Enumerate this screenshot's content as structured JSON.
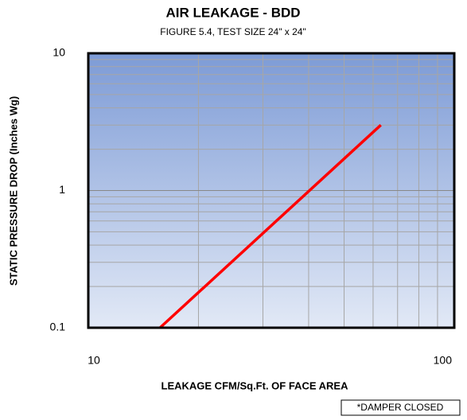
{
  "chart_data": {
    "type": "line",
    "title": "AIR LEAKAGE - BDD",
    "subtitle": "FIGURE 5.4, TEST SIZE 24\" x 24\"",
    "x_label": "LEAKAGE CFM/Sq.Ft. OF FACE AREA",
    "y_label": "STATIC PRESSURE DROP (Inches Wg)",
    "annotation": "*DAMPER CLOSED",
    "series": [
      {
        "name": "BDD",
        "color": "#ff0000",
        "x": [
          15.7,
          63
        ],
        "values": [
          0.1,
          3
        ]
      }
    ],
    "xlim": [
      10,
      100
    ],
    "xticks": [
      10,
      100
    ],
    "ylim": [
      0.1,
      10
    ],
    "yticks": [
      0.1,
      1,
      10
    ],
    "xscale": "log",
    "yscale": "log",
    "grid": true
  }
}
